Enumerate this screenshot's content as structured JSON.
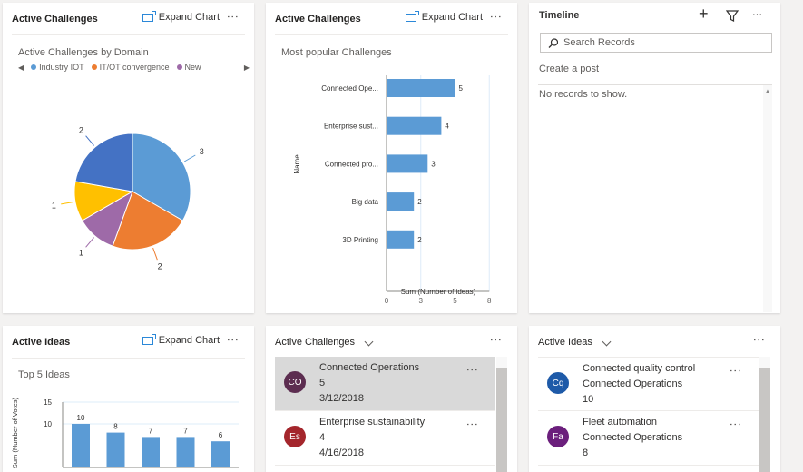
{
  "card1": {
    "title": "Active Challenges",
    "expand": "Expand Chart",
    "more": "⋮"
  },
  "card2": {
    "title": "Active Challenges",
    "expand": "Expand Chart",
    "more": "⋮"
  },
  "timeline": {
    "title": "Timeline",
    "add": "+",
    "more": "···",
    "search_placeholder": "Search Records",
    "create_post": "Create a post",
    "empty": "No records to show."
  },
  "card4": {
    "title": "Active Ideas",
    "expand": "Expand Chart",
    "more": "⋮"
  },
  "list1": {
    "title": "Active Challenges",
    "more": "⋮",
    "items": [
      {
        "initials": "CO",
        "color": "#5c2d50",
        "name": "Connected Operations",
        "line2": "5",
        "line3": "3/12/2018",
        "selected": true
      },
      {
        "initials": "Es",
        "color": "#a4262c",
        "name": "Enterprise sustainability",
        "line2": "4",
        "line3": "4/16/2018",
        "selected": false
      }
    ]
  },
  "list2": {
    "title": "Active Ideas",
    "more": "⋮",
    "items": [
      {
        "initials": "Cq",
        "color": "#1e5aa8",
        "name": "Connected quality control",
        "line2": "Connected Operations",
        "line3": "10"
      },
      {
        "initials": "Fa",
        "color": "#6b1f7c",
        "name": "Fleet automation",
        "line2": "Connected Operations",
        "line3": "8"
      }
    ]
  },
  "chart_data": [
    {
      "type": "pie",
      "title": "Active Challenges by Domain",
      "legend_placement": "top",
      "legend": [
        {
          "name": "Industry IOT",
          "color": "#5b9bd5"
        },
        {
          "name": "IT/OT convergence",
          "color": "#ed7d31"
        },
        {
          "name": "New",
          "color": "#9e6aa8"
        }
      ],
      "values": [
        3,
        2,
        1,
        1,
        2
      ],
      "colors": [
        "#5b9bd5",
        "#ed7d31",
        "#9e6aa8",
        "#ffc000",
        "#4472c4"
      ]
    },
    {
      "type": "bar",
      "orientation": "horizontal",
      "title": "Most popular Challenges",
      "ylabel": "Name",
      "xlabel": "Sum (Number of ideas)",
      "categories": [
        "Connected Ope...",
        "Enterprise sust...",
        "Connected pro...",
        "Big data",
        "3D Printing"
      ],
      "values": [
        5,
        4,
        3,
        2,
        2
      ],
      "xlim": [
        0,
        7.5
      ],
      "xticks": [
        "0",
        "3",
        "5",
        "8"
      ],
      "grid": true,
      "color": "#5b9bd5"
    },
    {
      "type": "bar",
      "title": "Top 5 Ideas",
      "ylabel": "Sum (Number of Votes)",
      "values": [
        10,
        8,
        7,
        7,
        6
      ],
      "yticks": [
        "15",
        "10"
      ],
      "ylim": [
        0,
        15
      ],
      "grid": true,
      "color": "#5b9bd5"
    }
  ]
}
